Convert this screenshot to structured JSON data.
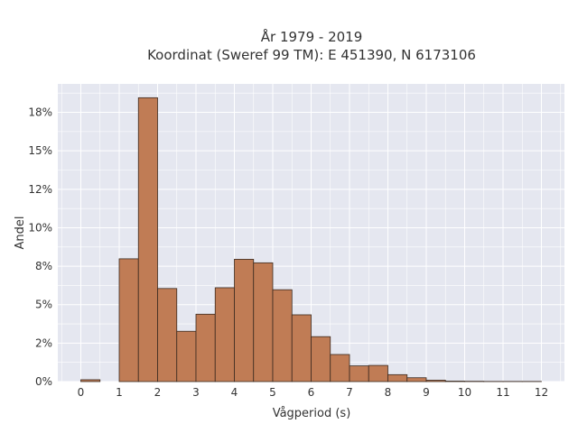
{
  "chart_data": {
    "type": "bar",
    "title_line1": "År 1979 - 2019",
    "title_line2": "Koordinat (Sweref 99 TM): E 451390, N 6173106",
    "xlabel": "Vågperiod (s)",
    "ylabel": "Andel",
    "xlim": [
      -0.6,
      12.6
    ],
    "ylim": [
      0,
      0.1935
    ],
    "x_ticks": [
      0,
      1,
      2,
      3,
      4,
      5,
      6,
      7,
      8,
      9,
      10,
      11,
      12
    ],
    "x_tick_labels": [
      "0",
      "1",
      "2",
      "3",
      "4",
      "5",
      "6",
      "7",
      "8",
      "9",
      "10",
      "11",
      "12"
    ],
    "y_ticks": [
      0,
      0.025,
      0.05,
      0.075,
      0.1,
      0.125,
      0.15,
      0.175
    ],
    "y_tick_labels": [
      "0%",
      "2%",
      "5%",
      "8%",
      "10%",
      "12%",
      "15%",
      "18%"
    ],
    "bin_width": 0.5,
    "bins": [
      {
        "x0": 0.0,
        "x1": 0.5,
        "value": 0.0012
      },
      {
        "x0": 1.0,
        "x1": 1.5,
        "value": 0.0798
      },
      {
        "x0": 1.5,
        "x1": 2.0,
        "value": 0.1845
      },
      {
        "x0": 2.0,
        "x1": 2.5,
        "value": 0.0605
      },
      {
        "x0": 2.5,
        "x1": 3.0,
        "value": 0.0327
      },
      {
        "x0": 3.0,
        "x1": 3.5,
        "value": 0.0438
      },
      {
        "x0": 3.5,
        "x1": 4.0,
        "value": 0.061
      },
      {
        "x0": 4.0,
        "x1": 4.5,
        "value": 0.0795
      },
      {
        "x0": 4.5,
        "x1": 5.0,
        "value": 0.0772
      },
      {
        "x0": 5.0,
        "x1": 5.5,
        "value": 0.0597
      },
      {
        "x0": 5.5,
        "x1": 6.0,
        "value": 0.0434
      },
      {
        "x0": 6.0,
        "x1": 6.5,
        "value": 0.0292
      },
      {
        "x0": 6.5,
        "x1": 7.0,
        "value": 0.0176
      },
      {
        "x0": 7.0,
        "x1": 7.5,
        "value": 0.0102
      },
      {
        "x0": 7.5,
        "x1": 8.0,
        "value": 0.0105
      },
      {
        "x0": 8.0,
        "x1": 8.5,
        "value": 0.0045
      },
      {
        "x0": 8.5,
        "x1": 9.0,
        "value": 0.0025
      },
      {
        "x0": 9.0,
        "x1": 9.5,
        "value": 0.0009
      },
      {
        "x0": 9.5,
        "x1": 10.0,
        "value": 0.0003
      },
      {
        "x0": 10.0,
        "x1": 10.5,
        "value": 0.0002
      },
      {
        "x0": 10.5,
        "x1": 11.0,
        "value": 0.0001
      },
      {
        "x0": 11.0,
        "x1": 11.5,
        "value": 0.0001
      },
      {
        "x0": 11.5,
        "x1": 12.0,
        "value": 0.0001
      }
    ],
    "grid": true,
    "colors": {
      "bar_fill": "#c07c55",
      "bar_stroke": "#3a2a20",
      "plot_background": "#e5e7f0",
      "grid": "#ffffff",
      "text": "#333333"
    }
  }
}
